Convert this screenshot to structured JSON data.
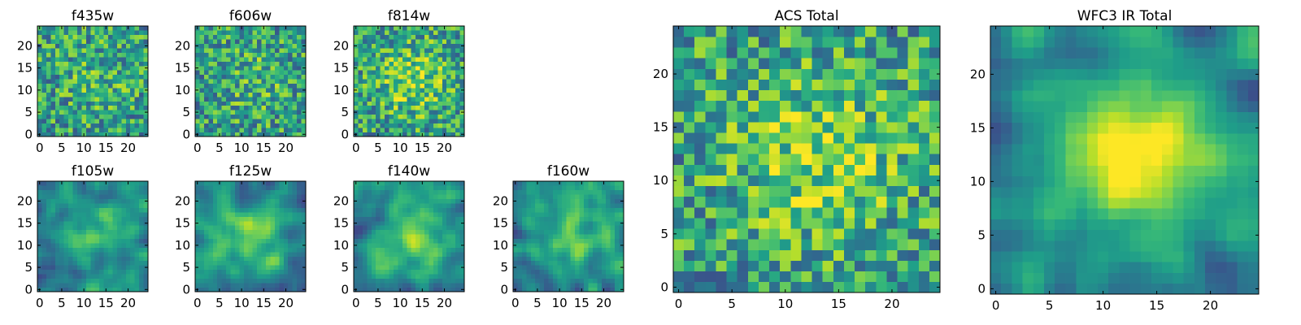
{
  "chart_data": [
    {
      "id": "f435w",
      "type": "heatmap",
      "title": "f435w",
      "colormap": "viridis",
      "grid_size": [
        25,
        25
      ],
      "xticks": [
        0,
        5,
        10,
        15,
        20
      ],
      "yticks": [
        0,
        5,
        10,
        15,
        20
      ],
      "xlim": [
        -0.5,
        24.5
      ],
      "ylim": [
        -0.5,
        24.5
      ],
      "pattern": "noise",
      "seed": 11
    },
    {
      "id": "f606w",
      "type": "heatmap",
      "title": "f606w",
      "colormap": "viridis",
      "grid_size": [
        25,
        25
      ],
      "xticks": [
        0,
        5,
        10,
        15,
        20
      ],
      "yticks": [
        0,
        5,
        10,
        15,
        20
      ],
      "xlim": [
        -0.5,
        24.5
      ],
      "ylim": [
        -0.5,
        24.5
      ],
      "pattern": "noise",
      "seed": 23
    },
    {
      "id": "f814w",
      "type": "heatmap",
      "title": "f814w",
      "colormap": "viridis",
      "grid_size": [
        25,
        25
      ],
      "xticks": [
        0,
        5,
        10,
        15,
        20
      ],
      "yticks": [
        0,
        5,
        10,
        15,
        20
      ],
      "xlim": [
        -0.5,
        24.5
      ],
      "ylim": [
        -0.5,
        24.5
      ],
      "pattern": "noise-center",
      "seed": 37
    },
    {
      "id": "f105w",
      "type": "heatmap",
      "title": "f105w",
      "colormap": "viridis",
      "grid_size": [
        25,
        25
      ],
      "xticks": [
        0,
        5,
        10,
        15,
        20
      ],
      "yticks": [
        0,
        5,
        10,
        15,
        20
      ],
      "xlim": [
        -0.5,
        24.5
      ],
      "ylim": [
        -0.5,
        24.5
      ],
      "pattern": "smooth",
      "seed": 41
    },
    {
      "id": "f125w",
      "type": "heatmap",
      "title": "f125w",
      "colormap": "viridis",
      "grid_size": [
        25,
        25
      ],
      "xticks": [
        0,
        5,
        10,
        15,
        20
      ],
      "yticks": [
        0,
        5,
        10,
        15,
        20
      ],
      "xlim": [
        -0.5,
        24.5
      ],
      "ylim": [
        -0.5,
        24.5
      ],
      "pattern": "smooth",
      "seed": 53
    },
    {
      "id": "f140w",
      "type": "heatmap",
      "title": "f140w",
      "colormap": "viridis",
      "grid_size": [
        25,
        25
      ],
      "xticks": [
        0,
        5,
        10,
        15,
        20
      ],
      "yticks": [
        0,
        5,
        10,
        15,
        20
      ],
      "xlim": [
        -0.5,
        24.5
      ],
      "ylim": [
        -0.5,
        24.5
      ],
      "pattern": "smooth",
      "seed": 67
    },
    {
      "id": "f160w",
      "type": "heatmap",
      "title": "f160w",
      "colormap": "viridis",
      "grid_size": [
        25,
        25
      ],
      "xticks": [
        0,
        5,
        10,
        15,
        20
      ],
      "yticks": [
        0,
        5,
        10,
        15,
        20
      ],
      "xlim": [
        -0.5,
        24.5
      ],
      "ylim": [
        -0.5,
        24.5
      ],
      "pattern": "smooth",
      "seed": 79
    },
    {
      "id": "acs-total",
      "type": "heatmap",
      "title": "ACS Total",
      "colormap": "viridis",
      "grid_size": [
        25,
        25
      ],
      "xticks": [
        0,
        5,
        10,
        15,
        20
      ],
      "yticks": [
        0,
        5,
        10,
        15,
        20
      ],
      "xlim": [
        -0.5,
        24.5
      ],
      "ylim": [
        -0.5,
        24.5
      ],
      "pattern": "noise-center",
      "seed": 97
    },
    {
      "id": "wfc3-ir-total",
      "type": "heatmap",
      "title": "WFC3 IR Total",
      "colormap": "viridis",
      "grid_size": [
        25,
        25
      ],
      "xticks": [
        0,
        5,
        10,
        15,
        20
      ],
      "yticks": [
        0,
        5,
        10,
        15,
        20
      ],
      "xlim": [
        -0.5,
        24.5
      ],
      "ylim": [
        -0.5,
        24.5
      ],
      "pattern": "smooth-center",
      "seed": 113
    }
  ]
}
